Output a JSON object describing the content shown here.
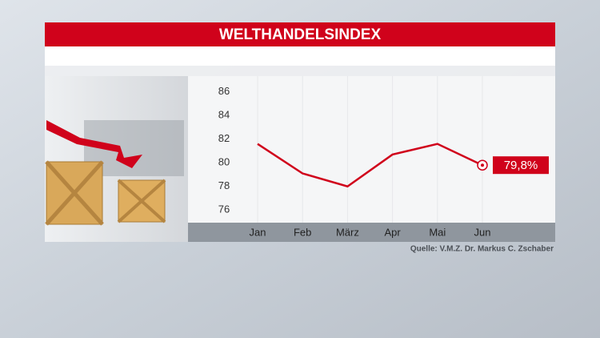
{
  "chart_data": {
    "type": "line",
    "title": "WELTHANDELSINDEX",
    "categories": [
      "Jan",
      "Feb",
      "März",
      "Apr",
      "Mai",
      "Jun"
    ],
    "values": [
      81.6,
      79.1,
      78.0,
      80.7,
      81.6,
      79.8
    ],
    "value_labels": [
      null,
      null,
      null,
      null,
      null,
      "79,8%"
    ],
    "color": "#d0021b",
    "ylim": [
      75,
      87
    ],
    "yticks": [
      76,
      78,
      80,
      82,
      84,
      86
    ],
    "source": "Quelle: V.M.Z. Dr. Markus C. Zschaber"
  }
}
